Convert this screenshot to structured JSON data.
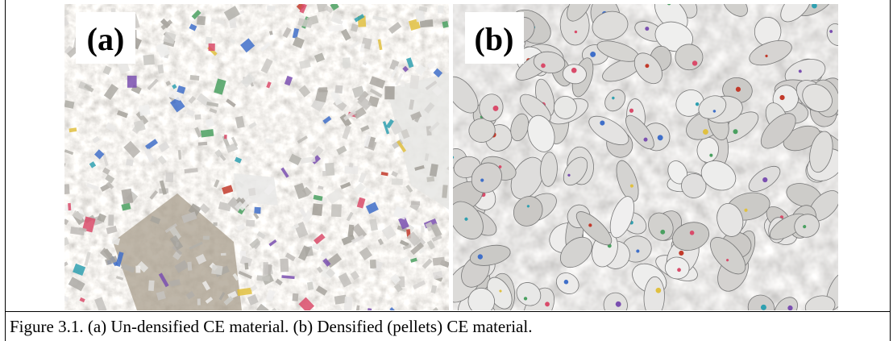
{
  "panels": [
    {
      "label": "(a)"
    },
    {
      "label": "(b)"
    }
  ],
  "caption": "Figure 3.1. (a) Un-densified CE material. (b) Densified (pellets) CE material."
}
